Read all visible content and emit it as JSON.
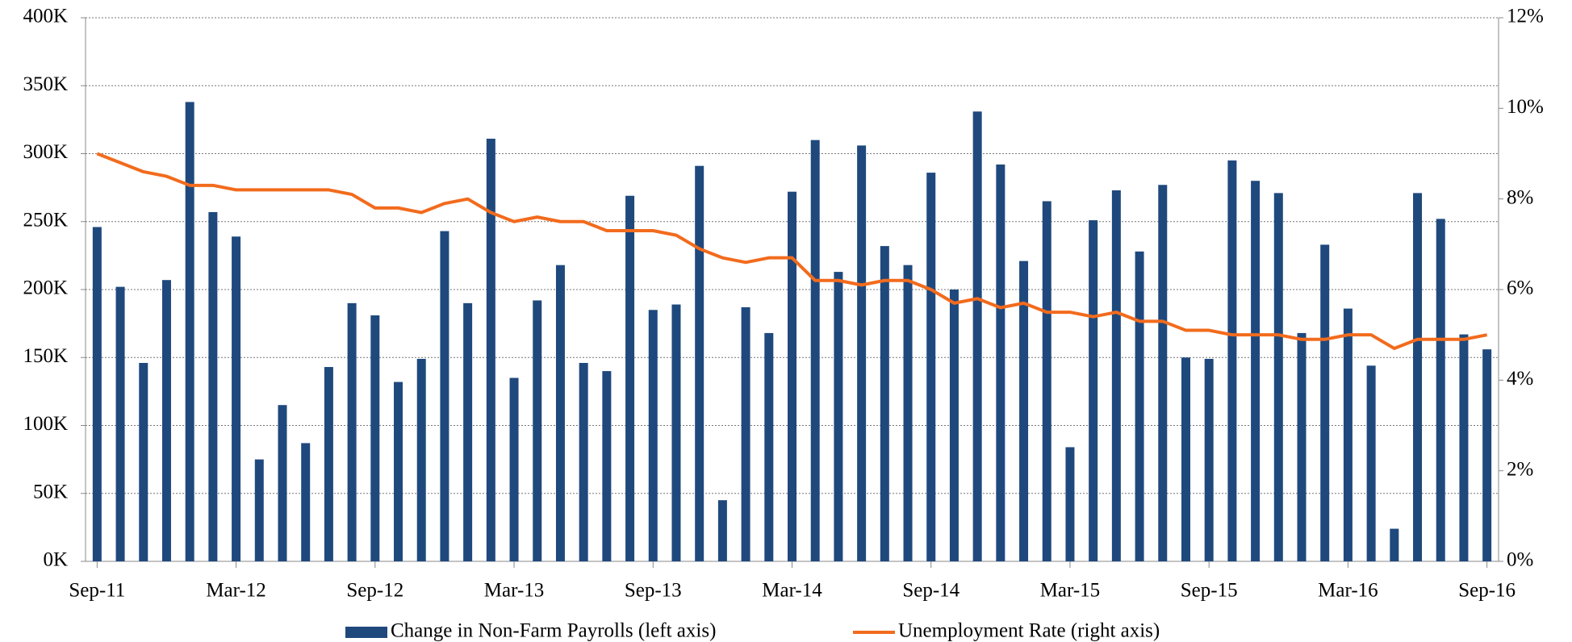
{
  "chart_data": {
    "type": "bar_line",
    "categories": [
      "Sep-11",
      null,
      null,
      null,
      null,
      null,
      "Mar-12",
      null,
      null,
      null,
      null,
      null,
      "Sep-12",
      null,
      null,
      null,
      null,
      null,
      "Mar-13",
      null,
      null,
      null,
      null,
      null,
      "Sep-13",
      null,
      null,
      null,
      null,
      null,
      "Mar-14",
      null,
      null,
      null,
      null,
      null,
      "Sep-14",
      null,
      null,
      null,
      null,
      null,
      "Mar-15",
      null,
      null,
      null,
      null,
      null,
      "Sep-15",
      null,
      null,
      null,
      null,
      null,
      "Mar-16",
      null,
      null,
      null,
      null,
      null,
      "Sep-16"
    ],
    "series": [
      {
        "name": "Change in Non-Farm Payrolls (left axis)",
        "color": "#1f497d",
        "kind": "bar",
        "axis": "y",
        "values": [
          246000,
          202000,
          146000,
          207000,
          338000,
          257000,
          239000,
          75000,
          115000,
          87000,
          143000,
          190000,
          181000,
          132000,
          149000,
          243000,
          190000,
          311000,
          135000,
          192000,
          218000,
          146000,
          140000,
          269000,
          185000,
          189000,
          291000,
          45000,
          187000,
          168000,
          272000,
          310000,
          213000,
          306000,
          232000,
          218000,
          286000,
          200000,
          331000,
          292000,
          221000,
          265000,
          84000,
          251000,
          273000,
          228000,
          277000,
          150000,
          149000,
          295000,
          280000,
          271000,
          168000,
          233000,
          186000,
          144000,
          24000,
          271000,
          252000,
          167000,
          156000
        ]
      },
      {
        "name": "Unemployment Rate (right axis)",
        "color": "#f26b1d",
        "kind": "line",
        "axis": "y2",
        "values": [
          9.0,
          8.8,
          8.6,
          8.5,
          8.3,
          8.3,
          8.2,
          8.2,
          8.2,
          8.2,
          8.2,
          8.1,
          7.8,
          7.8,
          7.7,
          7.9,
          8.0,
          7.7,
          7.5,
          7.6,
          7.5,
          7.5,
          7.3,
          7.3,
          7.3,
          7.2,
          6.9,
          6.7,
          6.6,
          6.7,
          6.7,
          6.2,
          6.2,
          6.1,
          6.2,
          6.2,
          6.0,
          5.7,
          5.8,
          5.6,
          5.7,
          5.5,
          5.5,
          5.4,
          5.5,
          5.3,
          5.3,
          5.1,
          5.1,
          5.0,
          5.0,
          5.0,
          4.9,
          4.9,
          5.0,
          5.0,
          4.7,
          4.9,
          4.9,
          4.9,
          5.0
        ]
      }
    ],
    "ylim": [
      0,
      400000
    ],
    "yticks": [
      {
        "value": 0,
        "label": "0K"
      },
      {
        "value": 50000,
        "label": "50K"
      },
      {
        "value": 100000,
        "label": "100K"
      },
      {
        "value": 150000,
        "label": "150K"
      },
      {
        "value": 200000,
        "label": "200K"
      },
      {
        "value": 250000,
        "label": "250K"
      },
      {
        "value": 300000,
        "label": "300K"
      },
      {
        "value": 350000,
        "label": "350K"
      },
      {
        "value": 400000,
        "label": "400K"
      }
    ],
    "y2lim": [
      0,
      12
    ],
    "y2ticks": [
      {
        "value": 0,
        "label": "0%"
      },
      {
        "value": 2,
        "label": "2%"
      },
      {
        "value": 4,
        "label": "4%"
      },
      {
        "value": 6,
        "label": "6%"
      },
      {
        "value": 8,
        "label": "8%"
      },
      {
        "value": 10,
        "label": "10%"
      },
      {
        "value": 12,
        "label": "12%"
      }
    ],
    "grid": true,
    "legend": "bottom"
  }
}
